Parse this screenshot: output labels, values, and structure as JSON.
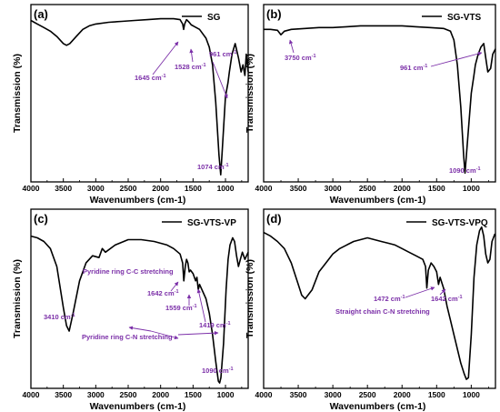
{
  "colors": {
    "trace": "#000000",
    "annotation": "#7b2fa8",
    "frame": "#000000"
  },
  "chart_data": [
    {
      "type": "line",
      "panel_label": "(a)",
      "legend": "SG",
      "legend_position": "top-right",
      "xlabel": "Wavenumbers (cm-1)",
      "ylabel": "Transmission (%)",
      "xlim": [
        4000,
        650
      ],
      "ylim": [
        0,
        100
      ],
      "x_reversed": true,
      "x_ticks": [
        4000,
        3500,
        3000,
        2500,
        2000,
        1500,
        1000
      ],
      "series": [
        {
          "x": [
            4000,
            3900,
            3800,
            3700,
            3600,
            3500,
            3450,
            3400,
            3300,
            3200,
            3100,
            3000,
            2800,
            2600,
            2400,
            2200,
            2000,
            1900,
            1800,
            1700,
            1660,
            1645,
            1630,
            1600,
            1560,
            1528,
            1500,
            1400,
            1300,
            1250,
            1200,
            1150,
            1100,
            1074,
            1050,
            1000,
            961,
            940,
            900,
            850,
            800,
            760,
            730,
            700,
            680,
            650
          ],
          "y": [
            91,
            89,
            87,
            85,
            82,
            78,
            77,
            78,
            82,
            86,
            88,
            89,
            90,
            90.5,
            91,
            91.5,
            92,
            92,
            92,
            91.5,
            89,
            86,
            89,
            91.5,
            90,
            88.5,
            88,
            86,
            81,
            76,
            66,
            45,
            15,
            4,
            18,
            48,
            56,
            62,
            72,
            78,
            70,
            62,
            66,
            60,
            72,
            62
          ]
        }
      ],
      "annotations": [
        {
          "text": "1645 cm",
          "sup": "-1"
        },
        {
          "text": "1528 cm",
          "sup": "-1"
        },
        {
          "text": "961 cm",
          "sup": "-1"
        },
        {
          "text": "1074 cm",
          "sup": "-1"
        }
      ]
    },
    {
      "type": "line",
      "panel_label": "(b)",
      "legend": "SG-VTS",
      "legend_position": "top-right",
      "xlabel": "Wavenumbers (cm-1)",
      "ylabel": "Transmission (%)",
      "xlim": [
        4000,
        650
      ],
      "ylim": [
        0,
        100
      ],
      "x_reversed": true,
      "x_ticks": [
        4000,
        3500,
        3000,
        2500,
        2000,
        1500,
        1000
      ],
      "series": [
        {
          "x": [
            4000,
            3900,
            3800,
            3750,
            3700,
            3600,
            3400,
            3200,
            3000,
            2800,
            2600,
            2400,
            2200,
            2000,
            1800,
            1600,
            1400,
            1300,
            1250,
            1200,
            1150,
            1110,
            1090,
            1060,
            1000,
            961,
            940,
            900,
            860,
            820,
            790,
            760,
            720,
            690,
            650
          ],
          "y": [
            86,
            86,
            85.5,
            83,
            85,
            86,
            86.5,
            87,
            87,
            87.5,
            88,
            88,
            88,
            88,
            87.5,
            87,
            86.5,
            85,
            80,
            66,
            42,
            15,
            5,
            20,
            50,
            60,
            66,
            72,
            76,
            78,
            70,
            62,
            64,
            72,
            75
          ]
        }
      ],
      "annotations": [
        {
          "text": "3750 cm",
          "sup": "-1"
        },
        {
          "text": "961 cm",
          "sup": "-1"
        },
        {
          "text": "1090 cm",
          "sup": "-1"
        }
      ]
    },
    {
      "type": "line",
      "panel_label": "(c)",
      "legend": "SG-VTS-VP",
      "legend_position": "top-right",
      "xlabel": "Wavenumbers (cm-1)",
      "ylabel": "Transmission (%)",
      "xlim": [
        4000,
        650
      ],
      "ylim": [
        0,
        100
      ],
      "x_reversed": true,
      "x_ticks": [
        4000,
        3500,
        3000,
        2500,
        2000,
        1500,
        1000
      ],
      "series": [
        {
          "x": [
            4000,
            3900,
            3800,
            3700,
            3600,
            3500,
            3450,
            3410,
            3350,
            3250,
            3150,
            3050,
            2950,
            2900,
            2850,
            2700,
            2500,
            2300,
            2100,
            1900,
            1800,
            1700,
            1660,
            1642,
            1620,
            1600,
            1580,
            1559,
            1540,
            1500,
            1460,
            1440,
            1419,
            1400,
            1300,
            1250,
            1200,
            1150,
            1110,
            1090,
            1070,
            1030,
            990,
            960,
            930,
            890,
            860,
            830,
            800,
            770,
            740,
            700,
            650
          ],
          "y": [
            85,
            84,
            82,
            78,
            68,
            45,
            35,
            32,
            42,
            60,
            70,
            74,
            73,
            78,
            76,
            80,
            83,
            83,
            82,
            80,
            78,
            75,
            70,
            60,
            68,
            72,
            70,
            65,
            66,
            64,
            60,
            62,
            55,
            58,
            50,
            42,
            30,
            15,
            4,
            3,
            6,
            25,
            55,
            72,
            80,
            84,
            82,
            74,
            68,
            72,
            76,
            72,
            76
          ]
        }
      ],
      "annotations": [
        {
          "text": "Pyridine ring C-C stretching"
        },
        {
          "text": "1642 cm",
          "sup": "-1"
        },
        {
          "text": "1559 cm",
          "sup": "-1"
        },
        {
          "text": "1419 cm",
          "sup": "-1"
        },
        {
          "text": "3410 cm",
          "sup": "-1"
        },
        {
          "text": "Pyridine ring C-N stretching"
        },
        {
          "text": "1090 cm",
          "sup": "-1"
        }
      ]
    },
    {
      "type": "line",
      "panel_label": "(d)",
      "legend": "SG-VTS-VPQ",
      "legend_position": "top-right",
      "xlabel": "Wavenumbers (cm-1)",
      "ylabel": "Transmission (%)",
      "xlim": [
        4000,
        650
      ],
      "ylim": [
        0,
        100
      ],
      "x_reversed": true,
      "x_ticks": [
        4000,
        3500,
        3000,
        2500,
        2000,
        1500,
        1000
      ],
      "series": [
        {
          "x": [
            4000,
            3900,
            3800,
            3700,
            3600,
            3500,
            3450,
            3400,
            3300,
            3200,
            3100,
            3000,
            2900,
            2800,
            2700,
            2600,
            2500,
            2400,
            2300,
            2200,
            2100,
            2000,
            1900,
            1800,
            1700,
            1660,
            1642,
            1620,
            1580,
            1540,
            1500,
            1472,
            1450,
            1400,
            1350,
            1300,
            1250,
            1200,
            1150,
            1100,
            1070,
            1040,
            1000,
            960,
            920,
            880,
            850,
            820,
            790,
            760,
            730,
            700,
            660,
            650
          ],
          "y": [
            87,
            85,
            82,
            78,
            70,
            58,
            52,
            50,
            55,
            65,
            70,
            75,
            78,
            80,
            82,
            83,
            84,
            83,
            82,
            81,
            80,
            78,
            76,
            74,
            72,
            68,
            56,
            66,
            70,
            68,
            65,
            58,
            62,
            56,
            46,
            38,
            30,
            22,
            14,
            8,
            5,
            6,
            30,
            62,
            80,
            88,
            90,
            85,
            75,
            70,
            72,
            82,
            86,
            85
          ]
        }
      ],
      "annotations": [
        {
          "text": "1472 cm",
          "sup": "-1"
        },
        {
          "text": "1642 cm",
          "sup": "-1"
        },
        {
          "text": "Straight chain C-N stretching"
        }
      ]
    }
  ]
}
